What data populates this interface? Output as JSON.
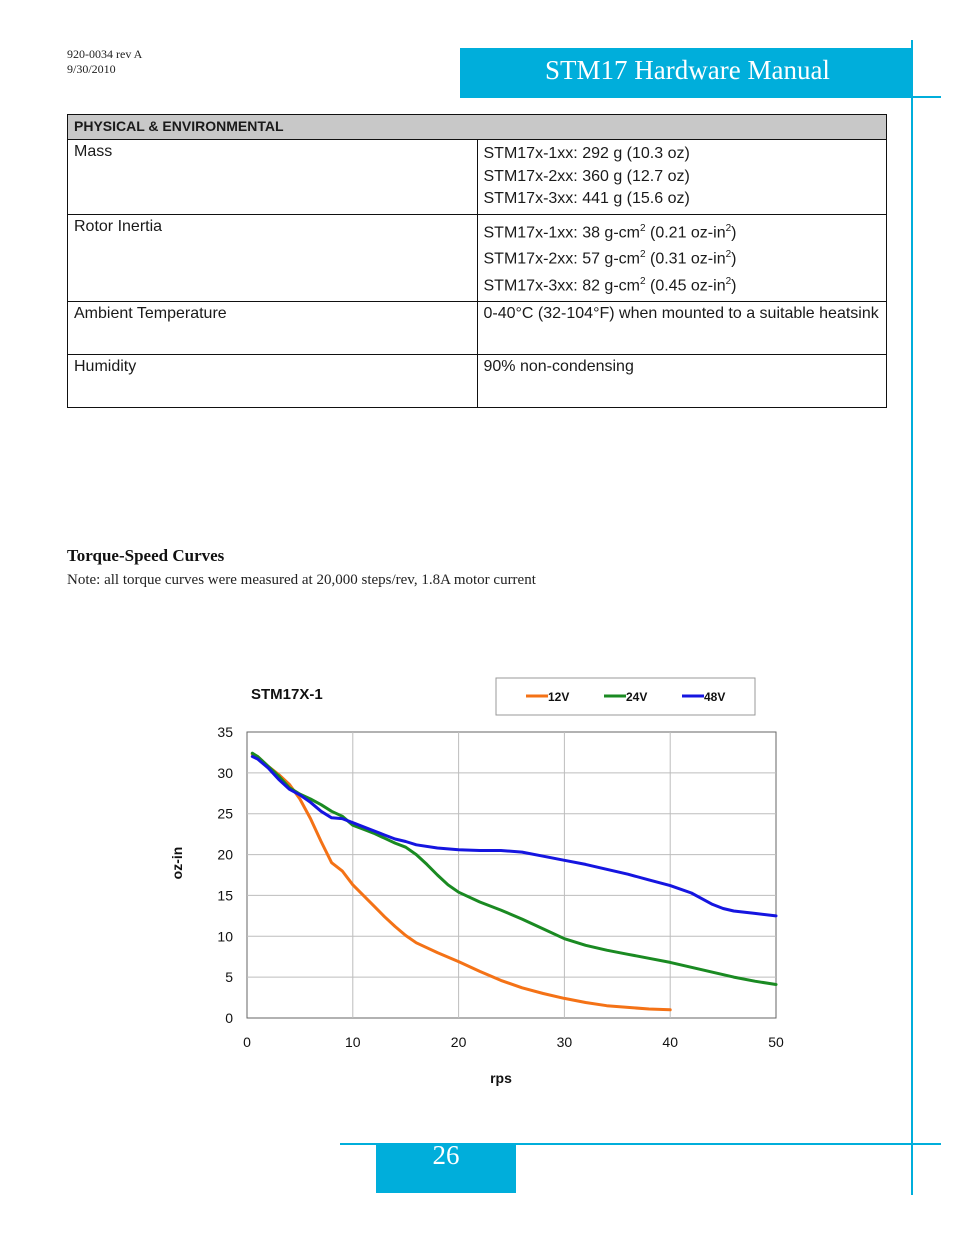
{
  "doc": {
    "number": "920-0034 rev A",
    "date": "9/30/2010"
  },
  "header": {
    "title": "STM17 Hardware Manual"
  },
  "table": {
    "heading": "PHYSICAL & ENVIRONMENTAL",
    "rows": [
      {
        "label": "Mass",
        "lines": [
          {
            "text": "STM17x-1xx:  292 g (10.3 oz)"
          },
          {
            "text": "STM17x-2xx:  360 g (12.7 oz)"
          },
          {
            "text": "STM17x-3xx:  441 g (15.6 oz)"
          }
        ]
      },
      {
        "label": "Rotor Inertia",
        "lines": [
          {
            "a": "STM17x-1xx:  38 g-cm",
            "sup1": "2",
            "b": " (0.21 oz-in",
            "sup2": "2",
            "c": ")"
          },
          {
            "a": "STM17x-2xx:  57 g-cm",
            "sup1": "2",
            "b": " (0.31 oz-in",
            "sup2": "2",
            "c": ")"
          },
          {
            "a": "STM17x-3xx:  82 g-cm",
            "sup1": "2",
            "b": " (0.45 oz-in",
            "sup2": "2",
            "c": ")"
          }
        ]
      },
      {
        "label": "Ambient Temperature",
        "value": "0-40°C (32-104°F) when mounted to a suitable heatsink"
      },
      {
        "label": "Humidity",
        "value": "90% non-condensing"
      }
    ]
  },
  "section": {
    "title": "Torque-Speed Curves",
    "note": "Note: all torque curves were measured at 20,000 steps/rev, 1.8A motor current"
  },
  "chart_data": {
    "type": "line",
    "title": "STM17X-1",
    "xlabel": "rps",
    "ylabel": "oz-in",
    "xlim": [
      0,
      50
    ],
    "ylim": [
      0,
      35
    ],
    "xticks": [
      "0",
      "10",
      "20",
      "30",
      "40",
      "50"
    ],
    "yticks": [
      "0",
      "5",
      "10",
      "15",
      "20",
      "25",
      "30",
      "35"
    ],
    "grid": true,
    "legend_position": "top-right",
    "series": [
      {
        "name": "12V",
        "color": "#f47216",
        "points": [
          [
            0.5,
            32.3
          ],
          [
            1,
            32.0
          ],
          [
            2,
            30.8
          ],
          [
            3,
            29.8
          ],
          [
            4,
            28.6
          ],
          [
            5,
            26.8
          ],
          [
            6,
            24.4
          ],
          [
            7,
            21.6
          ],
          [
            8,
            19.0
          ],
          [
            9,
            18.0
          ],
          [
            10,
            16.3
          ],
          [
            11,
            15.0
          ],
          [
            12,
            13.7
          ],
          [
            13,
            12.4
          ],
          [
            14,
            11.2
          ],
          [
            15,
            10.1
          ],
          [
            16,
            9.2
          ],
          [
            18,
            8.0
          ],
          [
            20,
            6.9
          ],
          [
            22,
            5.7
          ],
          [
            24,
            4.6
          ],
          [
            26,
            3.7
          ],
          [
            28,
            3.0
          ],
          [
            30,
            2.4
          ],
          [
            32,
            1.9
          ],
          [
            34,
            1.5
          ],
          [
            36,
            1.3
          ],
          [
            38,
            1.1
          ],
          [
            40,
            1.0
          ]
        ]
      },
      {
        "name": "24V",
        "color": "#1a8a22",
        "points": [
          [
            0.5,
            32.4
          ],
          [
            1,
            32.0
          ],
          [
            2,
            30.8
          ],
          [
            3,
            29.6
          ],
          [
            4,
            28.2
          ],
          [
            5,
            27.4
          ],
          [
            6,
            26.8
          ],
          [
            7,
            26.1
          ],
          [
            8,
            25.3
          ],
          [
            9,
            24.7
          ],
          [
            10,
            23.6
          ],
          [
            11,
            23.1
          ],
          [
            12,
            22.6
          ],
          [
            13,
            22.0
          ],
          [
            14,
            21.4
          ],
          [
            15,
            20.9
          ],
          [
            16,
            20.0
          ],
          [
            17,
            18.8
          ],
          [
            18,
            17.5
          ],
          [
            19,
            16.3
          ],
          [
            20,
            15.4
          ],
          [
            22,
            14.2
          ],
          [
            24,
            13.2
          ],
          [
            26,
            12.1
          ],
          [
            28,
            10.9
          ],
          [
            30,
            9.7
          ],
          [
            32,
            8.9
          ],
          [
            34,
            8.3
          ],
          [
            36,
            7.8
          ],
          [
            38,
            7.3
          ],
          [
            40,
            6.8
          ],
          [
            42,
            6.2
          ],
          [
            44,
            5.6
          ],
          [
            46,
            5.0
          ],
          [
            48,
            4.5
          ],
          [
            50,
            4.1
          ]
        ]
      },
      {
        "name": "48V",
        "color": "#1515e0",
        "points": [
          [
            0.5,
            32.0
          ],
          [
            1,
            31.7
          ],
          [
            2,
            30.6
          ],
          [
            3,
            29.2
          ],
          [
            4,
            28.0
          ],
          [
            5,
            27.3
          ],
          [
            6,
            26.4
          ],
          [
            7,
            25.3
          ],
          [
            8,
            24.5
          ],
          [
            9,
            24.4
          ],
          [
            10,
            23.9
          ],
          [
            11,
            23.4
          ],
          [
            12,
            22.9
          ],
          [
            13,
            22.4
          ],
          [
            14,
            21.9
          ],
          [
            15,
            21.6
          ],
          [
            16,
            21.2
          ],
          [
            18,
            20.8
          ],
          [
            20,
            20.6
          ],
          [
            22,
            20.5
          ],
          [
            24,
            20.5
          ],
          [
            26,
            20.3
          ],
          [
            28,
            19.8
          ],
          [
            30,
            19.3
          ],
          [
            32,
            18.8
          ],
          [
            34,
            18.2
          ],
          [
            36,
            17.6
          ],
          [
            38,
            16.9
          ],
          [
            40,
            16.2
          ],
          [
            42,
            15.3
          ],
          [
            43,
            14.6
          ],
          [
            44,
            13.9
          ],
          [
            45,
            13.4
          ],
          [
            46,
            13.1
          ],
          [
            48,
            12.8
          ],
          [
            50,
            12.5
          ]
        ]
      }
    ]
  },
  "footer": {
    "page": "26"
  }
}
